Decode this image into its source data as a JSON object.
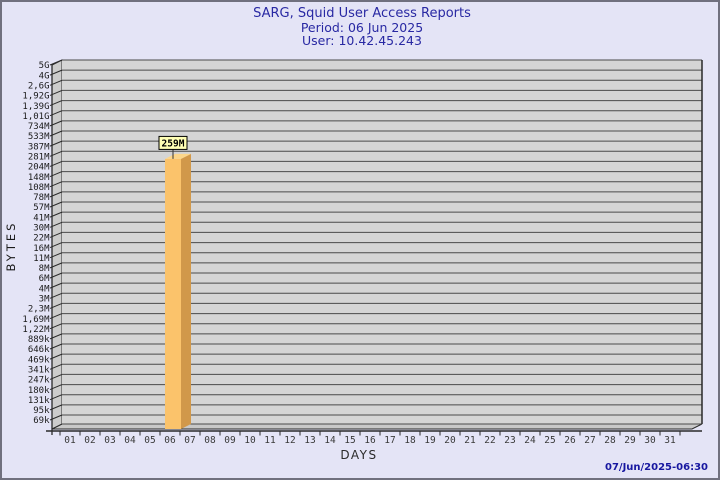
{
  "page": {
    "background_color": "#E4E4F6",
    "border_color": "#70707E"
  },
  "header": {
    "title": "SARG, Squid User Access Reports",
    "period": "Period: 06 Jun 2025",
    "user": "User: 10.42.45.243",
    "title_color": "#2929A3"
  },
  "footer": {
    "timestamp": "07/Jun/2025-06:30",
    "timestamp_color": "#1717A0"
  },
  "chart_data": {
    "type": "bar",
    "title": "SARG, Squid User Access Reports",
    "subtitle": [
      "Period: 06 Jun 2025",
      "User: 10.42.45.243"
    ],
    "xlabel": "DAYS",
    "ylabel": "BYTES",
    "style": "3d-bar",
    "grid": true,
    "legend": "none",
    "y_scale": "log",
    "y_max_bytes": 5000000000,
    "y_min_bytes": 69000,
    "y_tick_labels": [
      "5G",
      "4G",
      "2,6G",
      "1,92G",
      "1,39G",
      "1,01G",
      "734M",
      "533M",
      "387M",
      "281M",
      "204M",
      "148M",
      "108M",
      "78M",
      "57M",
      "41M",
      "30M",
      "22M",
      "16M",
      "11M",
      "8M",
      "6M",
      "4M",
      "3M",
      "2,3M",
      "1,69M",
      "1,22M",
      "889k",
      "646k",
      "469k",
      "341k",
      "247k",
      "180k",
      "131k",
      "95k",
      "69k"
    ],
    "x_categories": [
      "01",
      "02",
      "03",
      "04",
      "05",
      "06",
      "07",
      "08",
      "09",
      "10",
      "11",
      "12",
      "13",
      "14",
      "15",
      "16",
      "17",
      "18",
      "19",
      "20",
      "21",
      "22",
      "23",
      "24",
      "25",
      "26",
      "27",
      "28",
      "29",
      "30",
      "31"
    ],
    "bars": [
      {
        "category": "06",
        "label": "259M",
        "bytes": 259000000
      }
    ],
    "colors": {
      "bar_front": "#FBC36B",
      "bar_side": "#D1984A",
      "bar_top": "#FCD68A",
      "bar_label_bg": "#FFFFB5",
      "bar_label_border": "#000000",
      "plot_bg": "#D5D5D5",
      "wall": "#CCCCCC",
      "floor": "#C8C8C8",
      "gridline": "#4A4A4A",
      "axis": "#2A2A2A"
    }
  }
}
